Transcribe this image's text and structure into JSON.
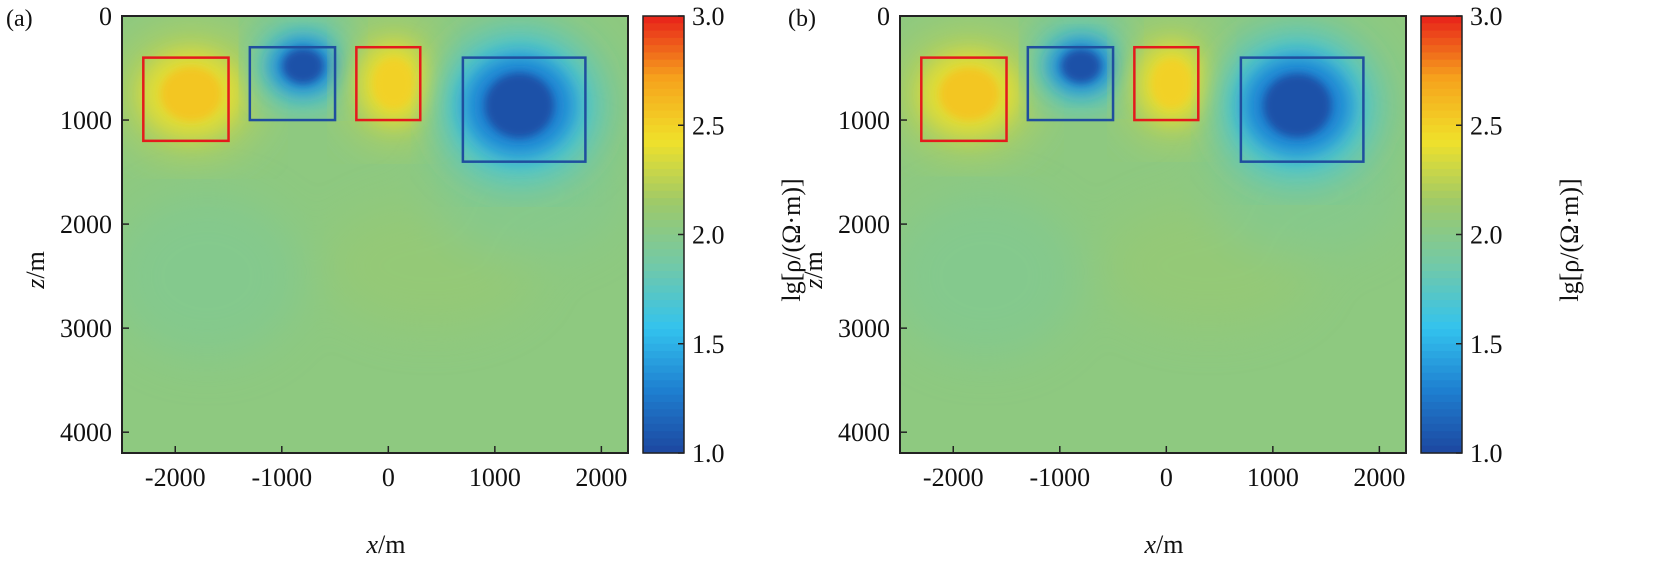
{
  "chart_data": [
    {
      "type": "heatmap",
      "panel_label": "(a)",
      "xlabel_var": "x",
      "xlabel_unit": "/m",
      "ylabel_var": "z",
      "ylabel_unit": "/m",
      "xlim": [
        -2500,
        2250
      ],
      "ylim": [
        4200,
        0
      ],
      "xticks": [
        "-2000",
        "-1000",
        "0",
        "1000",
        "2000"
      ],
      "xtick_values": [
        -2000,
        -1000,
        0,
        1000,
        2000
      ],
      "yticks": [
        "0",
        "1000",
        "2000",
        "3000",
        "4000"
      ],
      "ytick_values": [
        0,
        1000,
        2000,
        3000,
        4000
      ],
      "colorbar": {
        "label": "lg[ρ/(Ω·m)]",
        "range": [
          1.0,
          3.0
        ],
        "ticks": [
          "3.0",
          "2.5",
          "2.0",
          "1.5",
          "1.0"
        ],
        "tick_values": [
          3.0,
          2.5,
          2.0,
          1.5,
          1.0
        ],
        "colormap": [
          "#1d47a0",
          "#1e7fd0",
          "#33c3ee",
          "#72c9a8",
          "#9dc96a",
          "#f0e12a",
          "#f6a21c",
          "#e8201a"
        ]
      },
      "background_value": 2.0,
      "anomalies": [
        {
          "kind": "resistive",
          "value": 2.55,
          "cx": -1850,
          "cz": 750,
          "sx": 480,
          "sz": 400
        },
        {
          "kind": "conductive",
          "value": 1.05,
          "cx": -800,
          "cz": 480,
          "sx": 320,
          "sz": 260
        },
        {
          "kind": "resistive",
          "value": 2.5,
          "cx": 50,
          "cz": 650,
          "sx": 330,
          "sz": 380
        },
        {
          "kind": "conductive",
          "value": 1.05,
          "cx": 1230,
          "cz": 860,
          "sx": 540,
          "sz": 480
        }
      ],
      "model_boxes": [
        {
          "kind": "resistive",
          "x": [
            -2300,
            -1500
          ],
          "z": [
            400,
            1200
          ],
          "color": "#e41a1c"
        },
        {
          "kind": "conductive",
          "x": [
            -1300,
            -500
          ],
          "z": [
            300,
            1000
          ],
          "color": "#1f4e9e"
        },
        {
          "kind": "resistive",
          "x": [
            -300,
            300
          ],
          "z": [
            300,
            1000
          ],
          "color": "#e41a1c"
        },
        {
          "kind": "conductive",
          "x": [
            700,
            1850
          ],
          "z": [
            400,
            1400
          ],
          "color": "#1f4e9e"
        }
      ]
    },
    {
      "type": "heatmap",
      "panel_label": "(b)",
      "xlabel_var": "x",
      "xlabel_unit": "/m",
      "ylabel_var": "z",
      "ylabel_unit": "/m",
      "xlim": [
        -2500,
        2250
      ],
      "ylim": [
        4200,
        0
      ],
      "xticks": [
        "-2000",
        "-1000",
        "0",
        "1000",
        "2000"
      ],
      "xtick_values": [
        -2000,
        -1000,
        0,
        1000,
        2000
      ],
      "yticks": [
        "0",
        "1000",
        "2000",
        "3000",
        "4000"
      ],
      "ytick_values": [
        0,
        1000,
        2000,
        3000,
        4000
      ],
      "colorbar": {
        "label": "lg[ρ/(Ω·m)]",
        "range": [
          1.0,
          3.0
        ],
        "ticks": [
          "3.0",
          "2.5",
          "2.0",
          "1.5",
          "1.0"
        ],
        "tick_values": [
          3.0,
          2.5,
          2.0,
          1.5,
          1.0
        ],
        "colormap": [
          "#1d47a0",
          "#1e7fd0",
          "#33c3ee",
          "#72c9a8",
          "#9dc96a",
          "#f0e12a",
          "#f6a21c",
          "#e8201a"
        ]
      },
      "background_value": 2.0,
      "anomalies": [
        {
          "kind": "resistive",
          "value": 2.55,
          "cx": -1850,
          "cz": 750,
          "sx": 470,
          "sz": 390
        },
        {
          "kind": "conductive",
          "value": 1.05,
          "cx": -800,
          "cz": 480,
          "sx": 310,
          "sz": 250
        },
        {
          "kind": "resistive",
          "value": 2.5,
          "cx": 50,
          "cz": 650,
          "sx": 320,
          "sz": 370
        },
        {
          "kind": "conductive",
          "value": 1.05,
          "cx": 1230,
          "cz": 860,
          "sx": 530,
          "sz": 470
        }
      ],
      "model_boxes": [
        {
          "kind": "resistive",
          "x": [
            -2300,
            -1500
          ],
          "z": [
            400,
            1200
          ],
          "color": "#e41a1c"
        },
        {
          "kind": "conductive",
          "x": [
            -1300,
            -500
          ],
          "z": [
            300,
            1000
          ],
          "color": "#1f4e9e"
        },
        {
          "kind": "resistive",
          "x": [
            -300,
            300
          ],
          "z": [
            300,
            1000
          ],
          "color": "#e41a1c"
        },
        {
          "kind": "conductive",
          "x": [
            700,
            1850
          ],
          "z": [
            400,
            1400
          ],
          "color": "#1f4e9e"
        }
      ]
    }
  ]
}
